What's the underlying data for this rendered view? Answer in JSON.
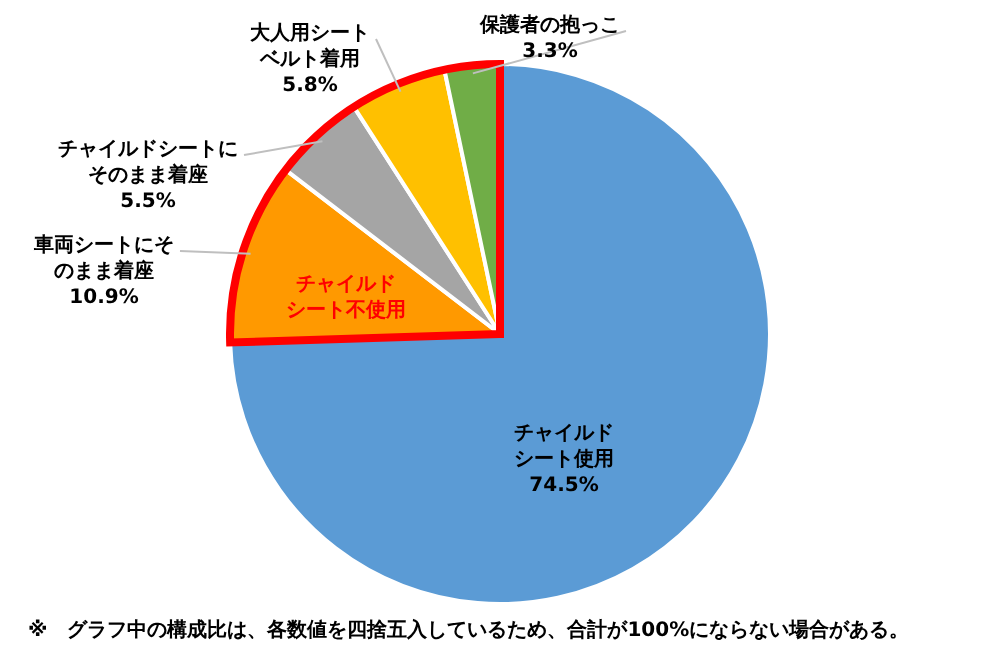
{
  "chart_data": {
    "type": "pie",
    "categories": [
      "チャイルドシート使用",
      "車両シートにそのまま着座",
      "チャイルドシートにそのまま着座",
      "大人用シートベルト着用",
      "保護者の抱っこ"
    ],
    "values": [
      74.5,
      10.9,
      5.5,
      5.8,
      3.3
    ],
    "colors": [
      "#5b9bd5",
      "#ff9900",
      "#a5a5a5",
      "#ffc000",
      "#70ad47"
    ],
    "value_labels": [
      "74.5%",
      "10.9%",
      "5.5%",
      "5.8%",
      "3.3%"
    ],
    "annotations": [
      "チャイルドシート不使用",
      "※　グラフ中の構成比は、各数値を四捨五入しているため、合計が100%にならない場合がある。"
    ],
    "legend": false
  }
}
